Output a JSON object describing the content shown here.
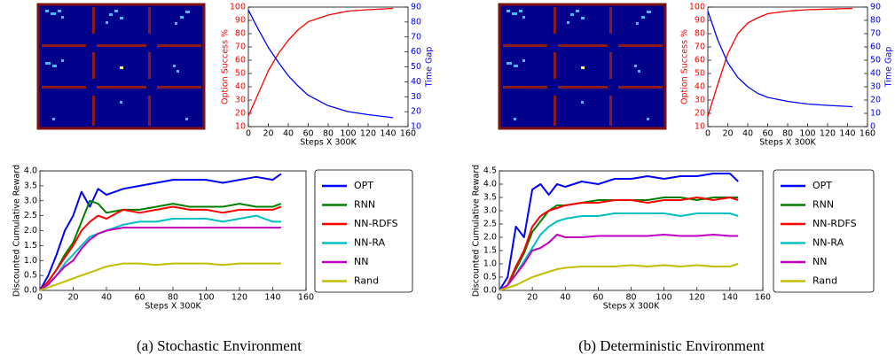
{
  "captions": [
    "(a) Stochastic Environment",
    "(b) Deterministic Environment"
  ],
  "chart_data": [
    {
      "type": "line",
      "xlabel": "Steps X 300K",
      "ylabel": "Option Success %",
      "y2label": "Time Gap",
      "x": [
        0,
        10,
        20,
        30,
        40,
        50,
        60,
        80,
        100,
        120,
        145
      ],
      "xlim": [
        0,
        160
      ],
      "xticks": [
        0,
        20,
        40,
        60,
        80,
        100,
        120,
        140,
        160
      ],
      "ylim": [
        10,
        100
      ],
      "yticks": [
        10,
        20,
        30,
        40,
        50,
        60,
        70,
        80,
        90,
        100
      ],
      "y2lim": [
        10,
        90
      ],
      "y2ticks": [
        10,
        20,
        30,
        40,
        50,
        60,
        70,
        80,
        90
      ],
      "series": [
        {
          "name": "Option Success %",
          "color": "#ff0000",
          "values": [
            18,
            35,
            52,
            65,
            75,
            83,
            89,
            94,
            97,
            98,
            99
          ]
        },
        {
          "name": "Time Gap",
          "color": "#0000ff",
          "axis": "y2",
          "values": [
            88,
            75,
            63,
            53,
            44,
            37,
            31,
            24,
            20,
            18,
            16
          ]
        }
      ]
    },
    {
      "type": "line",
      "xlabel": "Steps X 300K",
      "ylabel": "Discounted Cumulative Reward",
      "x": [
        0,
        5,
        10,
        15,
        20,
        25,
        30,
        35,
        40,
        50,
        60,
        70,
        80,
        90,
        100,
        110,
        120,
        130,
        140,
        145
      ],
      "xlim": [
        0,
        160
      ],
      "xticks": [
        0,
        20,
        40,
        60,
        80,
        100,
        120,
        140,
        160
      ],
      "ylim": [
        0,
        4
      ],
      "yticks": [
        {
          "value": 0,
          "label": "0.0"
        },
        0.5,
        {
          "value": 1,
          "label": "1.0"
        },
        1.5,
        {
          "value": 2,
          "label": "2.0"
        },
        2.5,
        {
          "value": 3,
          "label": "3.0"
        },
        3.5,
        {
          "value": 4,
          "label": "4.0"
        }
      ],
      "legend": "right",
      "series": [
        {
          "name": "OPT",
          "color": "#0000ff",
          "values": [
            0,
            0.5,
            1.2,
            2.0,
            2.5,
            3.3,
            2.8,
            3.4,
            3.2,
            3.4,
            3.5,
            3.6,
            3.7,
            3.7,
            3.7,
            3.6,
            3.7,
            3.8,
            3.7,
            3.9
          ]
        },
        {
          "name": "RNN",
          "color": "#007f00",
          "values": [
            0,
            0.3,
            0.7,
            1.2,
            1.6,
            2.3,
            3.0,
            2.9,
            2.6,
            2.7,
            2.7,
            2.8,
            2.9,
            2.8,
            2.8,
            2.8,
            2.9,
            2.8,
            2.8,
            2.9
          ]
        },
        {
          "name": "NN-RDFS",
          "color": "#ff0000",
          "values": [
            0,
            0.3,
            0.7,
            1.1,
            1.5,
            2.0,
            2.3,
            2.5,
            2.4,
            2.7,
            2.6,
            2.7,
            2.8,
            2.7,
            2.7,
            2.6,
            2.7,
            2.7,
            2.7,
            2.8
          ]
        },
        {
          "name": "NN-RA",
          "color": "#00bfbf",
          "values": [
            0,
            0.2,
            0.5,
            0.9,
            1.2,
            1.5,
            1.8,
            1.9,
            2.0,
            2.2,
            2.3,
            2.3,
            2.4,
            2.4,
            2.4,
            2.3,
            2.4,
            2.5,
            2.3,
            2.3
          ]
        },
        {
          "name": "NN",
          "color": "#bf00bf",
          "values": [
            0,
            0.2,
            0.5,
            0.8,
            1.0,
            1.4,
            1.7,
            1.9,
            2.0,
            2.1,
            2.1,
            2.1,
            2.1,
            2.1,
            2.1,
            2.1,
            2.1,
            2.1,
            2.1,
            2.1
          ]
        },
        {
          "name": "Rand",
          "color": "#bfbf00",
          "values": [
            0,
            0.1,
            0.2,
            0.3,
            0.4,
            0.5,
            0.6,
            0.7,
            0.8,
            0.9,
            0.9,
            0.85,
            0.9,
            0.9,
            0.9,
            0.85,
            0.9,
            0.9,
            0.9,
            0.9
          ]
        }
      ]
    },
    {
      "type": "line",
      "xlabel": "Steps X 300K",
      "ylabel": "Option Success %",
      "y2label": "Time Gap",
      "x": [
        0,
        10,
        20,
        30,
        40,
        50,
        60,
        80,
        100,
        120,
        145
      ],
      "xlim": [
        0,
        160
      ],
      "xticks": [
        0,
        20,
        40,
        60,
        80,
        100,
        120,
        140,
        160
      ],
      "ylim": [
        10,
        100
      ],
      "yticks": [
        10,
        20,
        30,
        40,
        50,
        60,
        70,
        80,
        90,
        100
      ],
      "y2lim": [
        0,
        90
      ],
      "y2ticks": [
        0,
        10,
        20,
        30,
        40,
        50,
        60,
        70,
        80,
        90
      ],
      "series": [
        {
          "name": "Option Success %",
          "color": "#ff0000",
          "values": [
            18,
            42,
            65,
            80,
            88,
            92,
            95,
            97,
            98,
            98.5,
            99
          ]
        },
        {
          "name": "Time Gap",
          "color": "#0000ff",
          "axis": "y2",
          "values": [
            87,
            65,
            48,
            37,
            30,
            25,
            22,
            19,
            17,
            16,
            15
          ]
        }
      ]
    },
    {
      "type": "line",
      "xlabel": "Steps X 300K",
      "ylabel": "Discounted Cumulative Reward",
      "x": [
        0,
        5,
        10,
        15,
        20,
        25,
        30,
        35,
        40,
        50,
        60,
        70,
        80,
        90,
        100,
        110,
        120,
        130,
        140,
        145
      ],
      "xlim": [
        0,
        160
      ],
      "xticks": [
        0,
        20,
        40,
        60,
        80,
        100,
        120,
        140,
        160
      ],
      "ylim": [
        0,
        4.5
      ],
      "yticks": [
        {
          "value": 0,
          "label": "0.0"
        },
        0.5,
        {
          "value": 1,
          "label": "1.0"
        },
        1.5,
        {
          "value": 2,
          "label": "2.0"
        },
        2.5,
        {
          "value": 3,
          "label": "3.0"
        },
        3.5,
        {
          "value": 4,
          "label": "4.0"
        },
        4.5
      ],
      "legend": "right",
      "series": [
        {
          "name": "OPT",
          "color": "#0000ff",
          "values": [
            0,
            0.5,
            2.4,
            2.0,
            3.8,
            4.0,
            3.6,
            4.0,
            3.9,
            4.1,
            4.0,
            4.2,
            4.2,
            4.3,
            4.2,
            4.3,
            4.3,
            4.4,
            4.4,
            4.1
          ]
        },
        {
          "name": "RNN",
          "color": "#007f00",
          "values": [
            0,
            0.2,
            0.8,
            1.4,
            2.2,
            2.6,
            3.0,
            3.2,
            3.2,
            3.3,
            3.4,
            3.4,
            3.4,
            3.4,
            3.5,
            3.5,
            3.4,
            3.5,
            3.5,
            3.5
          ]
        },
        {
          "name": "NN-RDFS",
          "color": "#ff0000",
          "values": [
            0,
            0.2,
            0.9,
            1.5,
            2.4,
            2.8,
            3.0,
            3.1,
            3.2,
            3.3,
            3.3,
            3.4,
            3.4,
            3.3,
            3.4,
            3.4,
            3.5,
            3.4,
            3.5,
            3.4
          ]
        },
        {
          "name": "NN-RA",
          "color": "#00bfbf",
          "values": [
            0,
            0.2,
            0.6,
            1.1,
            1.6,
            2.1,
            2.4,
            2.6,
            2.7,
            2.8,
            2.8,
            2.9,
            2.9,
            2.9,
            2.9,
            2.8,
            2.9,
            2.9,
            2.9,
            2.8
          ]
        },
        {
          "name": "NN",
          "color": "#bf00bf",
          "values": [
            0,
            0.2,
            0.6,
            1.0,
            1.5,
            1.6,
            1.8,
            2.1,
            2.0,
            2.0,
            2.05,
            2.05,
            2.05,
            2.05,
            2.1,
            2.05,
            2.05,
            2.1,
            2.05,
            2.05
          ]
        },
        {
          "name": "Rand",
          "color": "#bfbf00",
          "values": [
            0,
            0.1,
            0.2,
            0.35,
            0.5,
            0.6,
            0.7,
            0.8,
            0.85,
            0.9,
            0.9,
            0.9,
            0.95,
            0.9,
            0.95,
            0.9,
            0.95,
            0.9,
            0.9,
            1.0
          ]
        }
      ]
    }
  ]
}
